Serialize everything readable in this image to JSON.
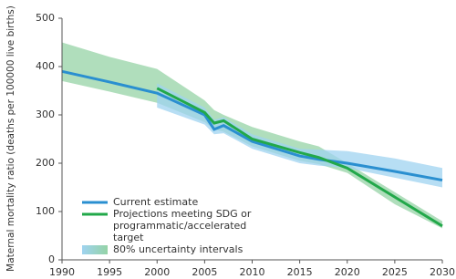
{
  "chart_data": {
    "type": "line",
    "y_label": "Maternal mortality ratio (deaths per 100000 live births)",
    "x": [
      1990,
      1995,
      2000,
      2005,
      2006,
      2007,
      2010,
      2015,
      2017,
      2020,
      2025,
      2030
    ],
    "series": [
      {
        "name": "Current estimate",
        "color": "#2a8fd0",
        "values": [
          390,
          368,
          345,
          300,
          270,
          278,
          245,
          215,
          208,
          200,
          183,
          165
        ]
      },
      {
        "name": "Projections meeting SDG or programmatic/accelerated target",
        "color": "#22a84a",
        "values": [
          null,
          null,
          355,
          305,
          283,
          288,
          250,
          222,
          212,
          190,
          130,
          70
        ]
      }
    ],
    "bands": [
      {
        "name": "80% uncertainty intervals",
        "color": "#9fd3f0",
        "upper": [
          null,
          null,
          365,
          315,
          290,
          295,
          260,
          230,
          228,
          225,
          210,
          190
        ],
        "lower": [
          null,
          null,
          315,
          280,
          260,
          262,
          230,
          200,
          195,
          190,
          170,
          150
        ]
      },
      {
        "color": "#95d3a6",
        "upper": [
          450,
          420,
          395,
          330,
          310,
          300,
          275,
          245,
          235,
          200,
          140,
          80
        ],
        "lower": [
          370,
          348,
          325,
          285,
          270,
          265,
          235,
          205,
          198,
          180,
          115,
          65
        ]
      }
    ],
    "xlim": [
      1990,
      2030
    ],
    "ylim": [
      0,
      500
    ],
    "xticks": [
      1990,
      1995,
      2000,
      2005,
      2010,
      2015,
      2020,
      2025,
      2030
    ],
    "yticks": [
      0,
      100,
      200,
      300,
      400,
      500
    ],
    "legend": "lower-left"
  }
}
